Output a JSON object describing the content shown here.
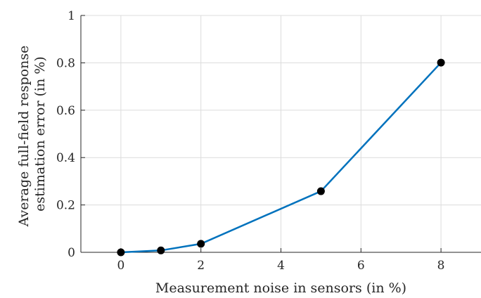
{
  "chart_data": {
    "type": "line",
    "title": "",
    "xlabel": "Measurement noise in sensors (in %)",
    "ylabel_lines": [
      "Average full-field response",
      "estimation error (in %)"
    ],
    "xlim": [
      -1,
      9
    ],
    "ylim": [
      0,
      1
    ],
    "x_ticks": [
      0,
      2,
      4,
      6,
      8
    ],
    "y_ticks": [
      0,
      0.2,
      0.4,
      0.6,
      0.8,
      1
    ],
    "x_tick_labels": [
      "0",
      "2",
      "4",
      "6",
      "8"
    ],
    "y_tick_labels": [
      "0",
      "0.2",
      "0.4",
      "0.6",
      "0.8",
      "1"
    ],
    "grid": true,
    "series": [
      {
        "x": [
          0,
          1,
          2,
          5,
          8
        ],
        "y": [
          0.0,
          0.008,
          0.036,
          0.258,
          0.801
        ],
        "line_color": "#0072BD",
        "marker_color": "#000000"
      }
    ]
  }
}
